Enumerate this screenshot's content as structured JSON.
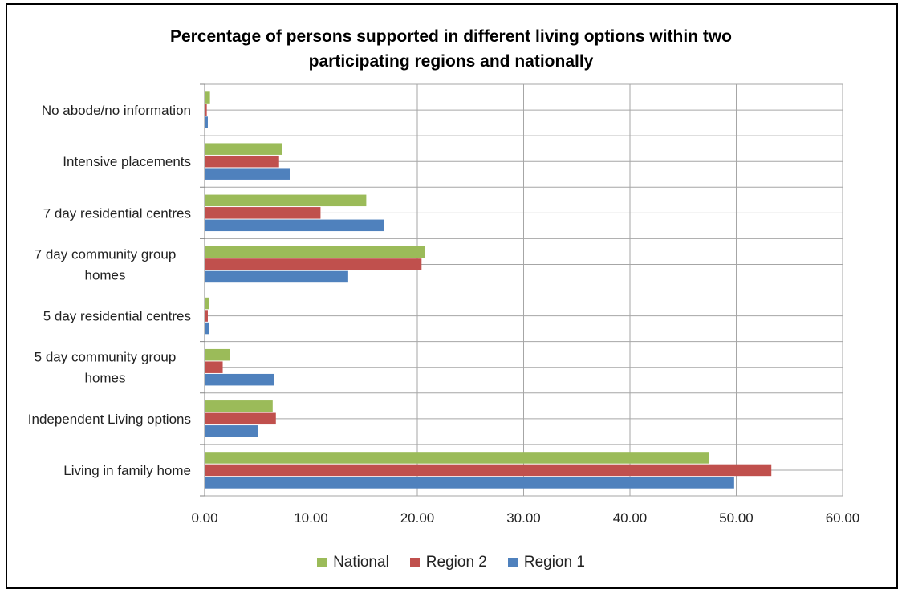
{
  "chart_data": {
    "type": "bar",
    "orientation": "horizontal",
    "title_lines": [
      "Percentage of persons supported in different living options within two",
      "participating regions and nationally"
    ],
    "categories": [
      "No abode/no information",
      "Intensive placements",
      "7 day residential centres",
      "7 day community group homes",
      "5 day residential centres",
      "5 day community group homes",
      "Independent Living options",
      "Living in family home"
    ],
    "series": [
      {
        "name": "National",
        "color": "#9bbb59",
        "values": [
          0.5,
          7.3,
          15.2,
          20.7,
          0.4,
          2.4,
          6.4,
          47.4
        ]
      },
      {
        "name": "Region 2",
        "color": "#c0504d",
        "values": [
          0.2,
          7.0,
          10.9,
          20.4,
          0.3,
          1.7,
          6.7,
          53.3
        ]
      },
      {
        "name": "Region 1",
        "color": "#4f81bd",
        "values": [
          0.3,
          8.0,
          16.9,
          13.5,
          0.4,
          6.5,
          5.0,
          49.8
        ]
      }
    ],
    "xlim": [
      0,
      60
    ],
    "xticks": [
      "0.00",
      "10.00",
      "20.00",
      "30.00",
      "40.00",
      "50.00",
      "60.00"
    ],
    "grid": true,
    "legend_position": "bottom"
  }
}
